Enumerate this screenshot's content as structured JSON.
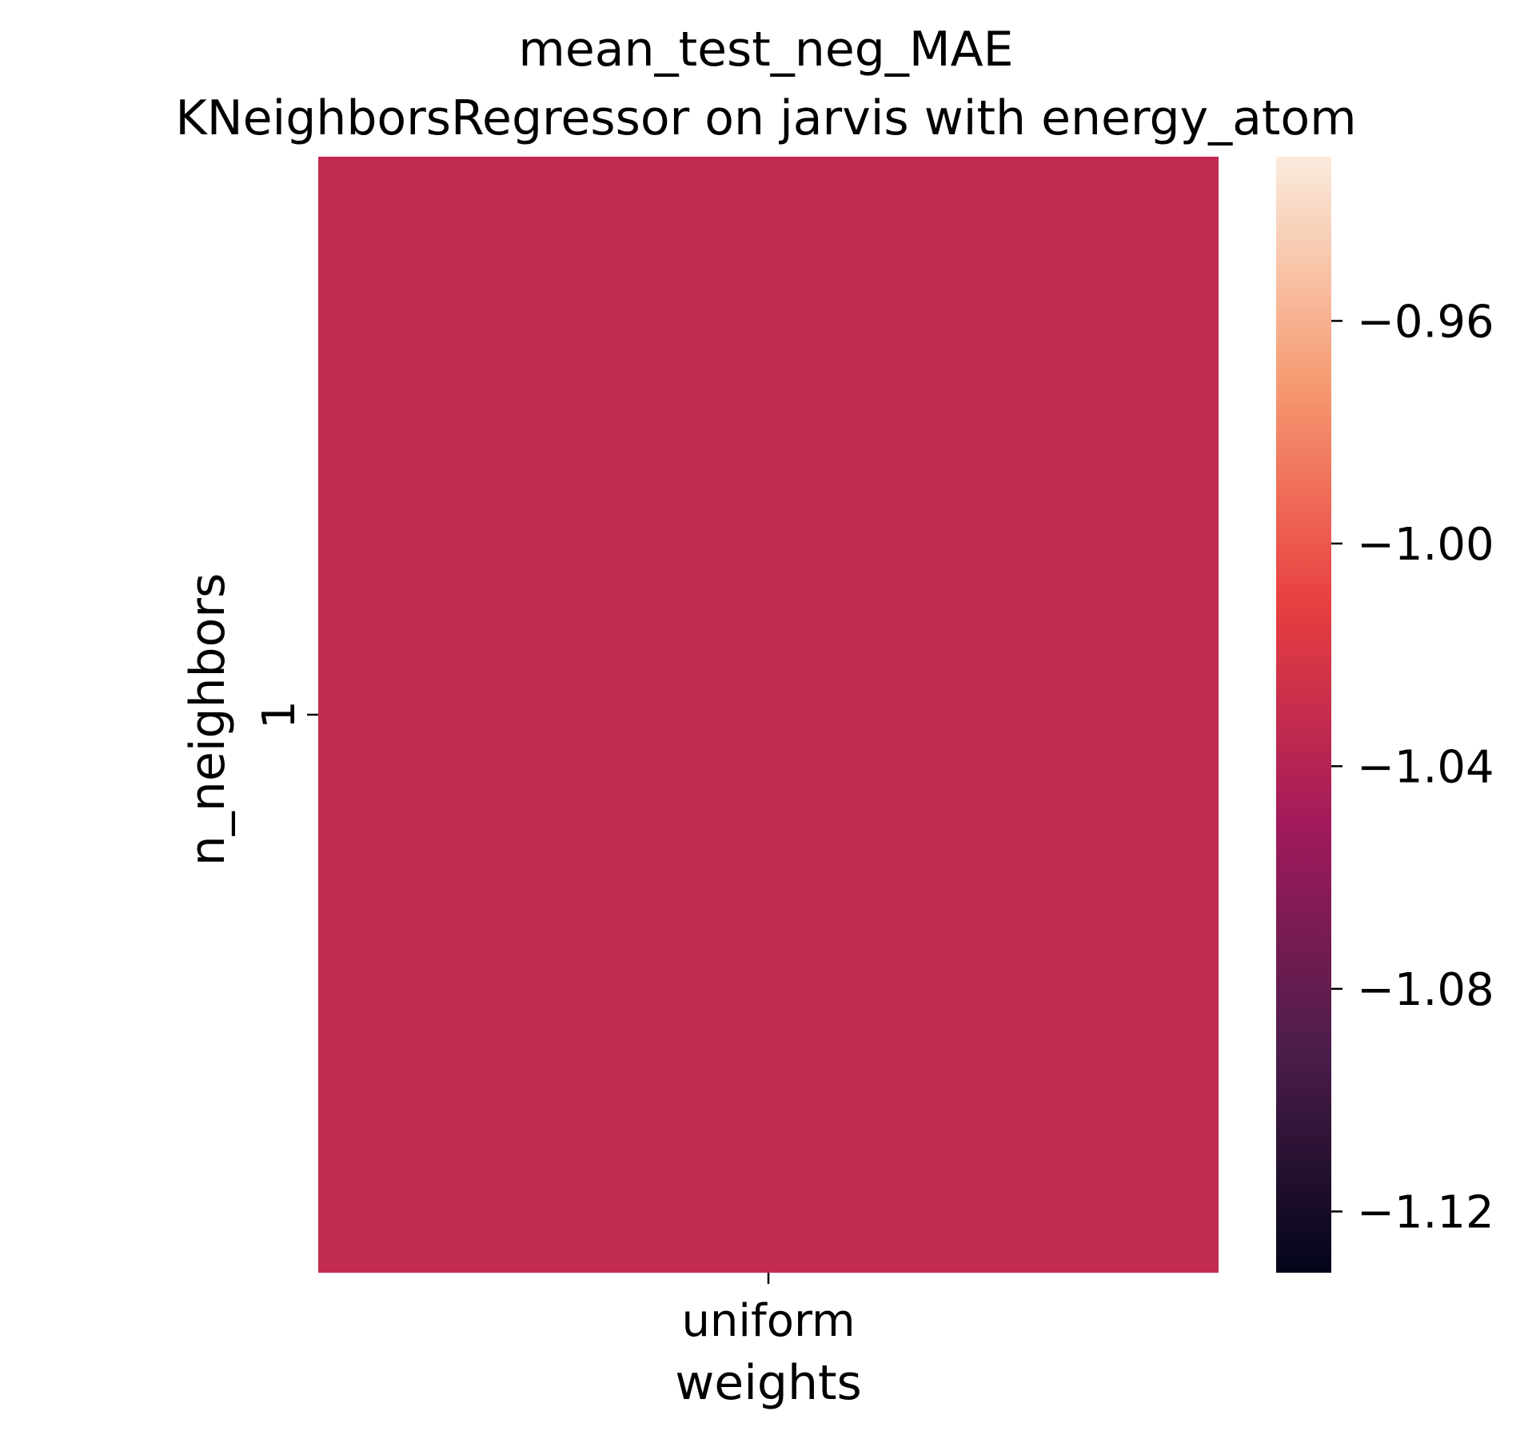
{
  "chart_data": {
    "type": "heatmap",
    "title_lines": [
      "mean_test_neg_MAE",
      "KNeighborsRegressor on jarvis with energy_atom"
    ],
    "xlabel": "weights",
    "ylabel": "n_neighbors",
    "x_categories": [
      "uniform"
    ],
    "y_categories": [
      "1"
    ],
    "values": [
      [
        -1.0325
      ]
    ],
    "colormap": "rocket",
    "colorbar": {
      "vmin": -1.131,
      "vmax": -0.9305,
      "ticks": [
        -0.96,
        -1.0,
        -1.04,
        -1.08,
        -1.12
      ],
      "tick_labels": [
        "−0.96",
        "−1.00",
        "−1.04",
        "−1.08",
        "−1.12"
      ],
      "colors": [
        "#03051a",
        "#4c1d4b",
        "#a11a5b",
        "#e83f3f",
        "#f69c73",
        "#faebdd"
      ]
    }
  }
}
